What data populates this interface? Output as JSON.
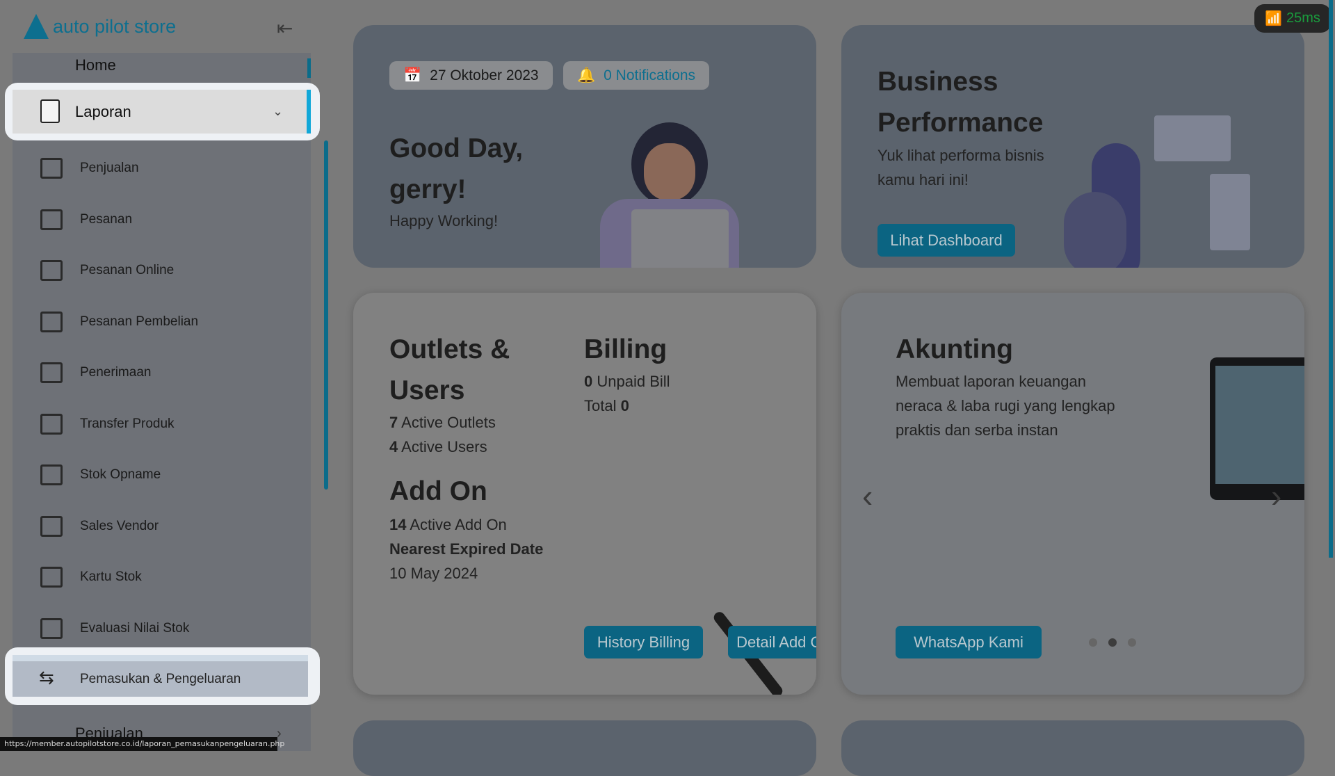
{
  "app": {
    "logo_text": "auto pilot store"
  },
  "network": {
    "latency": "25ms",
    "icon": "wifi-icon",
    "color": "#1a9c3d"
  },
  "sidebar": {
    "home": "Home",
    "laporan": "Laporan",
    "submenu": [
      "Penjualan",
      "Pesanan",
      "Pesanan Online",
      "Pesanan Pembelian",
      "Penerimaan",
      "Transfer Produk",
      "Stok Opname",
      "Sales Vendor",
      "Kartu Stok",
      "Evaluasi Nilai Stok",
      "Pemasukan & Pengeluaran"
    ],
    "next_item": "Penjualan"
  },
  "status_url": "https://member.autopilotstore.co.id/laporan_pemasukanpengeluaran.php",
  "welcome": {
    "date": "27 Oktober 2023",
    "notifications": "0 Notifications",
    "greeting_line1": "Good Day,",
    "greeting_line2": "gerry!",
    "subtitle": "Happy Working!"
  },
  "business": {
    "title_line1": "Business",
    "title_line2": "Performance",
    "desc_line1": "Yuk lihat performa bisnis",
    "desc_line2": "kamu hari ini!",
    "button": "Lihat Dashboard"
  },
  "outlets": {
    "title_line1": "Outlets &",
    "title_line2": "Users",
    "outlets_count": "7",
    "outlets_label": " Active Outlets",
    "users_count": "4",
    "users_label": " Active Users"
  },
  "billing": {
    "title": "Billing",
    "unpaid_count": "0",
    "unpaid_label": " Unpaid Bill",
    "total_label": "Total ",
    "total_value": "0",
    "history_button": "History Billing"
  },
  "addon": {
    "title": "Add On",
    "active_count": "14",
    "active_label": " Active Add On",
    "nearest_label": "Nearest Expired Date",
    "nearest_date": "10 May 2024",
    "detail_button": "Detail Add On"
  },
  "akunting": {
    "title": "Akunting",
    "desc_line1": "Membuat laporan keuangan",
    "desc_line2": "neraca & laba rugi yang lengkap",
    "desc_line3": "praktis dan serba instan",
    "button": "WhatsApp Kami",
    "active_slide": 2
  },
  "colors": {
    "accent": "#0b6482",
    "highlight": "#10a7d8",
    "link": "#0d6f8f"
  }
}
